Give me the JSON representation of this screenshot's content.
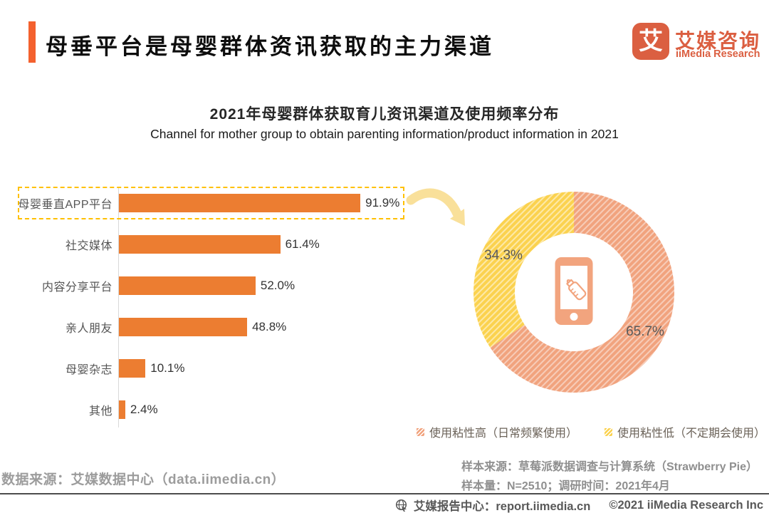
{
  "header": {
    "title": "母垂平台是母婴群体资讯获取的主力渠道",
    "logo": {
      "glyph": "艾",
      "brand_cn": "艾媒咨询",
      "brand_en": "iiMedia Research"
    }
  },
  "chart": {
    "title_cn": "2021年母婴群体获取育儿资讯渠道及使用频率分布",
    "title_en": "Channel for mother group to obtain parenting information/product information in 2021"
  },
  "chart_data": [
    {
      "type": "bar",
      "orientation": "horizontal",
      "categories": [
        "母婴垂直APP平台",
        "社交媒体",
        "内容分享平台",
        "亲人朋友",
        "母婴杂志",
        "其他"
      ],
      "values": [
        91.9,
        61.4,
        52.0,
        48.8,
        10.1,
        2.4
      ],
      "value_labels": [
        "91.9%",
        "61.4%",
        "52.0%",
        "48.8%",
        "10.1%",
        "2.4%"
      ],
      "unit": "%",
      "xlim": [
        0,
        100
      ],
      "bar_color": "#EC7D31",
      "highlighted_category": "母婴垂直APP平台",
      "highlight_box_color": "#FFC000",
      "grid": false
    },
    {
      "type": "pie",
      "donut": true,
      "labels": [
        "使用粘性高（日常频繁使用）",
        "使用粘性低（不定期会使用）"
      ],
      "values": [
        65.7,
        34.3
      ],
      "value_labels": [
        "65.7%",
        "34.3%"
      ],
      "colors": [
        "#F1A37E",
        "#FBD24F"
      ],
      "hatch": true,
      "start_angle": "top",
      "direction": "clockwise",
      "center_icon": "smartphone-baby-bottle-icon",
      "legend_position": "bottom"
    }
  ],
  "sources": {
    "data_source": "数据来源：艾媒数据中心（data.iimedia.cn）",
    "sample_source": "样本来源：草莓派数据调查与计算系统（Strawberry Pie）",
    "sample_meta": "样本量：N=2510；调研时间：2021年4月"
  },
  "footer": {
    "report_center": "艾媒报告中心：report.iimedia.cn",
    "copyright": "©2021  iiMedia Research Inc"
  },
  "colors": {
    "accent_orange": "#F4612E",
    "bar_orange": "#EC7D31",
    "brand_red_orange": "#DB5F41",
    "donut_high_orange": "#F1A37E",
    "donut_low_yellow": "#FBD24F",
    "highlight_dash_yellow": "#FFC000",
    "arrow_yellow": "#F9E09A"
  }
}
